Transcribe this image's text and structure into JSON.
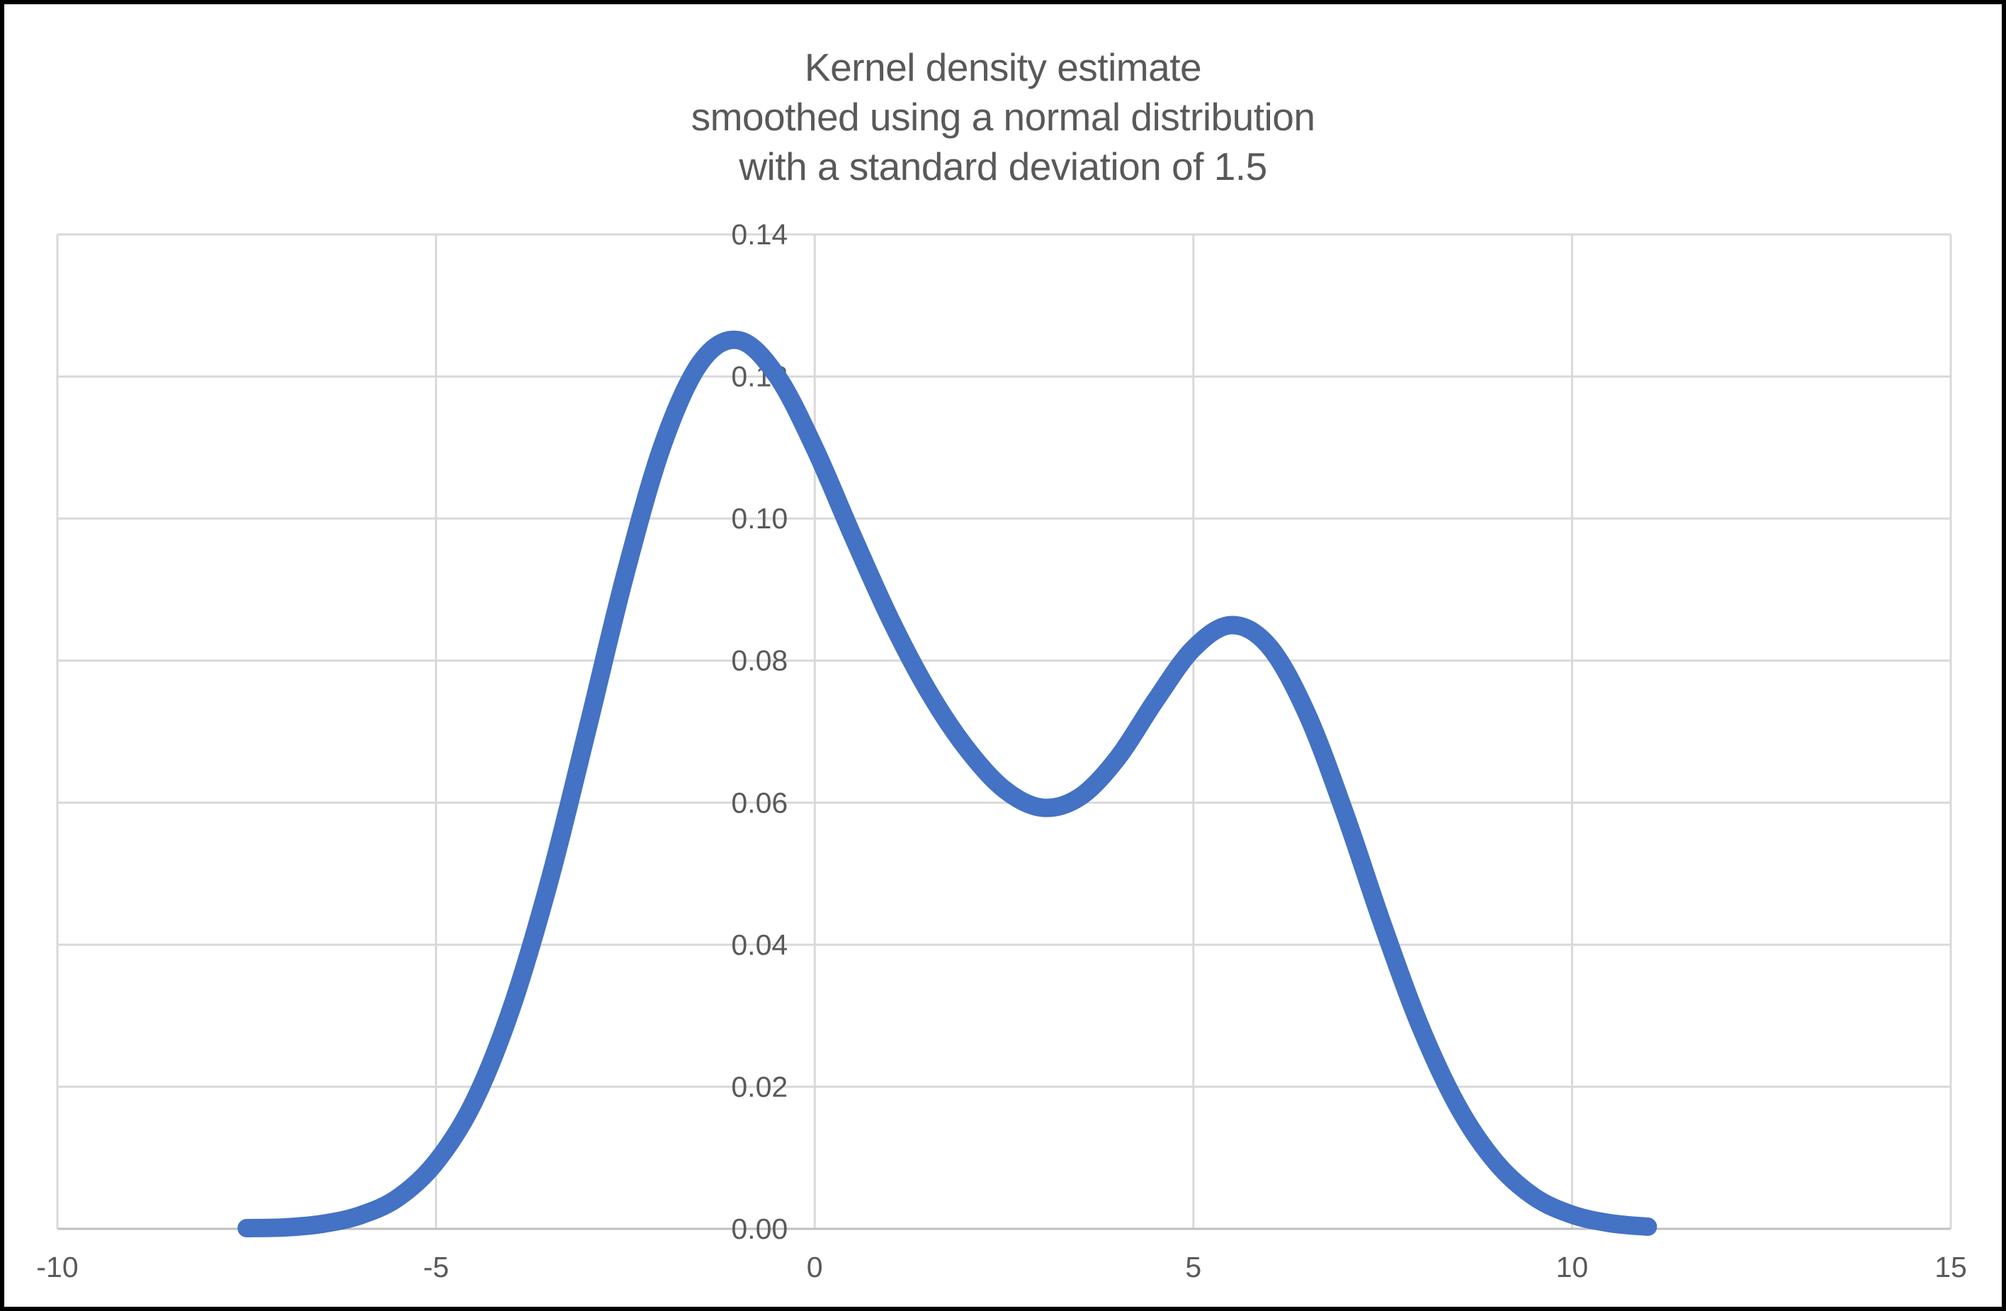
{
  "chart_title": {
    "line1": "Kernel density estimate",
    "line2": "smoothed using a normal distribution",
    "line3": "with a standard deviation of 1.5"
  },
  "colors": {
    "series": "#4472C4",
    "gridline": "#D9D9D9",
    "axis_line": "#BFBFBF",
    "text": "#595959",
    "background": "#FFFFFF",
    "frame": "#000000"
  },
  "chart_data": {
    "type": "line",
    "title": "Kernel density estimate smoothed using a normal distribution with a standard deviation of 1.5",
    "xlabel": "",
    "ylabel": "",
    "xlim": [
      -10,
      15
    ],
    "ylim": [
      0,
      0.14
    ],
    "x_ticks": [
      -10,
      -5,
      0,
      5,
      10,
      15
    ],
    "x_tick_labels": [
      "-10",
      "-5",
      "0",
      "5",
      "10",
      "15"
    ],
    "y_ticks": [
      0.0,
      0.02,
      0.04,
      0.06,
      0.08,
      0.1,
      0.12,
      0.14
    ],
    "y_tick_labels": [
      "0.00",
      "0.02",
      "0.04",
      "0.06",
      "0.08",
      "0.10",
      "0.12",
      "0.14"
    ],
    "grid": true,
    "legend": false,
    "kernel": "normal",
    "kernel_sd": 1.5,
    "series": [
      {
        "name": "kernel density estimate",
        "color": "#4472C4",
        "x": [
          -7.5,
          -7.0,
          -6.5,
          -6.0,
          -5.5,
          -5.0,
          -4.5,
          -4.0,
          -3.5,
          -3.0,
          -2.5,
          -2.0,
          -1.5,
          -1.0,
          -0.5,
          0.0,
          0.5,
          1.0,
          1.5,
          2.0,
          2.5,
          3.0,
          3.5,
          4.0,
          4.5,
          5.0,
          5.5,
          6.0,
          6.5,
          7.0,
          7.5,
          8.0,
          8.5,
          9.0,
          9.5,
          10.0,
          10.5,
          11.0
        ],
        "y": [
          0.0001,
          0.0002,
          0.0007,
          0.0019,
          0.0044,
          0.0094,
          0.0179,
          0.0312,
          0.0491,
          0.0704,
          0.0922,
          0.1106,
          0.1221,
          0.1251,
          0.1201,
          0.1099,
          0.0976,
          0.0858,
          0.0757,
          0.0677,
          0.0619,
          0.0593,
          0.0608,
          0.0663,
          0.0744,
          0.0817,
          0.085,
          0.082,
          0.0725,
          0.0585,
          0.0428,
          0.0284,
          0.0171,
          0.0093,
          0.0045,
          0.002,
          0.0008,
          0.0003
        ]
      }
    ]
  }
}
